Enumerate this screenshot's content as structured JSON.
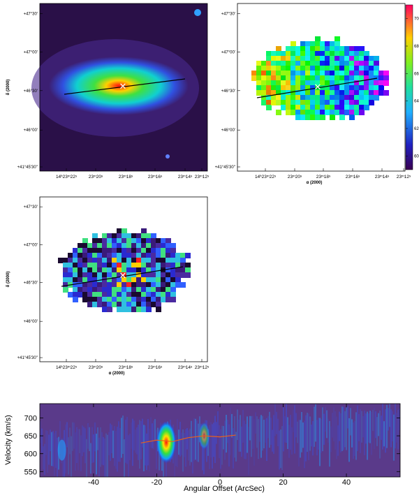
{
  "panels": [
    {
      "ylabel": "δ (2000)",
      "yticks": [
        "+47°30'",
        "+47°00'",
        "+46°30'",
        "+46°00'",
        "+41°45'30''"
      ],
      "xticks": [
        "14ʰ23ᵐ22ˢ",
        "23ᵐ20ˢ",
        "23ᵐ18ˢ",
        "23ᵐ16ˢ",
        "23ᵐ14ˢ",
        "23ᵐ12ˢ"
      ]
    },
    {
      "yticks": [
        "+47°30'",
        "+47°00'",
        "+46°30'",
        "+46°00'",
        "+41°45'30''"
      ],
      "xticks": [
        "14ʰ23ᵐ22ˢ",
        "23ᵐ20ˢ",
        "23ᵐ18ˢ",
        "23ᵐ16ˢ",
        "23ᵐ14ˢ",
        "23ᵐ12ˢ"
      ],
      "xlabel": "α (2000)",
      "colorbar": {
        "lim": [
          590,
          710
        ],
        "ticks": [
          600,
          620,
          640,
          660,
          680,
          700
        ]
      }
    },
    {
      "ylabel": "δ (2000)",
      "yticks": [
        "+47°30'",
        "+47°00'",
        "+46°30'",
        "+46°00'",
        "+41°45'30''"
      ],
      "xticks": [
        "14ʰ23ᵐ22ˢ",
        "23ᵐ20ˢ",
        "23ᵐ18ˢ",
        "23ᵐ16ˢ",
        "23ᵐ14ˢ",
        "23ᵐ12ˢ"
      ],
      "xlabel": "α (2000)"
    }
  ],
  "chart_data": {
    "type": "line",
    "xlabel": "Angular Offset (ArcSec)",
    "ylabel": "Velocity (km/s)",
    "xlim": [
      -57,
      57
    ],
    "ylim": [
      535,
      740
    ],
    "xticks": [
      -40,
      -20,
      0,
      20,
      40
    ],
    "yticks": [
      550,
      600,
      650,
      700
    ],
    "x": [
      -25,
      -20,
      -15,
      -10,
      -5,
      0,
      5
    ],
    "values": [
      630,
      638,
      634,
      645,
      650,
      647,
      652
    ],
    "color": "#e8601c"
  }
}
